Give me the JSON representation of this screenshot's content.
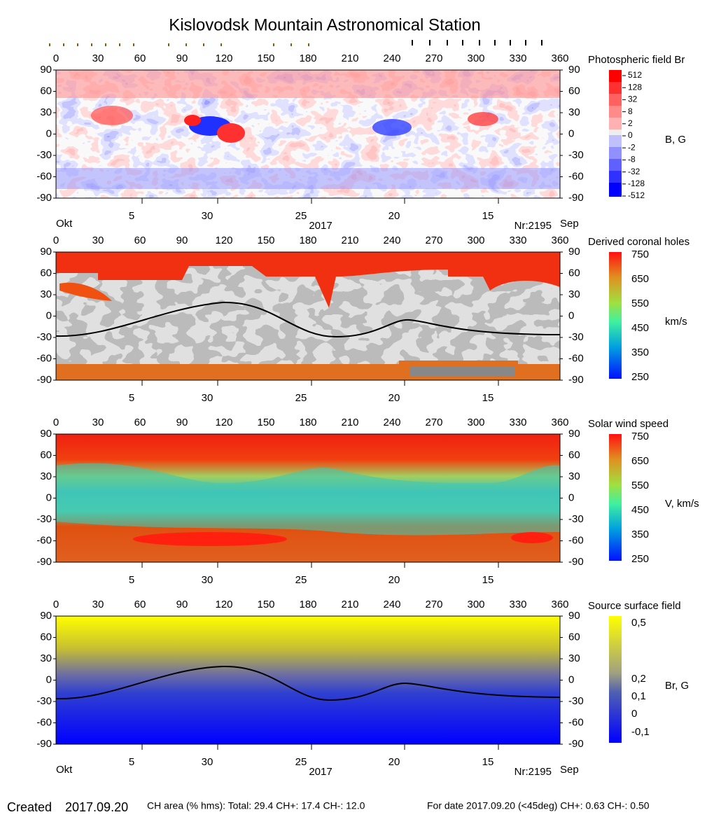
{
  "title": "Kislovodsk Mountain Astronomical Station",
  "lon_ticks": [
    "0",
    "30",
    "60",
    "90",
    "120",
    "150",
    "180",
    "210",
    "240",
    "270",
    "300",
    "330",
    "360"
  ],
  "lat_ticks": [
    "90",
    "60",
    "30",
    "0",
    "-30",
    "-60",
    "-90"
  ],
  "date_ticks": [
    "5",
    "30",
    "25",
    "20",
    "15"
  ],
  "month_start": "Okt",
  "year": "2017",
  "rotation": "Nr:2195",
  "month_end": "Sep",
  "panels": [
    {
      "title": "Photospheric field Br",
      "unit": "B, G",
      "colorbar_ticks": [
        "512",
        "128",
        "32",
        "8",
        "2",
        "0",
        "-2",
        "-8",
        "-32",
        "-128",
        "-512"
      ]
    },
    {
      "title": "Derived coronal holes",
      "unit": "km/s",
      "colorbar_ticks": [
        "750",
        "650",
        "550",
        "450",
        "350",
        "250"
      ]
    },
    {
      "title": "Solar wind speed",
      "unit": "V, km/s",
      "colorbar_ticks": [
        "750",
        "650",
        "550",
        "450",
        "350",
        "250"
      ]
    },
    {
      "title": "Source surface field",
      "unit": "Br, G",
      "colorbar_ticks": [
        "0,5",
        "0,2",
        "0,1",
        "0",
        "-0,1"
      ]
    }
  ],
  "footer": {
    "created_label": "Created",
    "created_date": "2017.09.20",
    "ch_area": "CH area (% hms): Total: 29.4 CH+: 17.4 CH-: 12.0",
    "for_date": "For date 2017.09.20 (<45deg) CH+: 0.63 CH-: 0.50"
  }
}
